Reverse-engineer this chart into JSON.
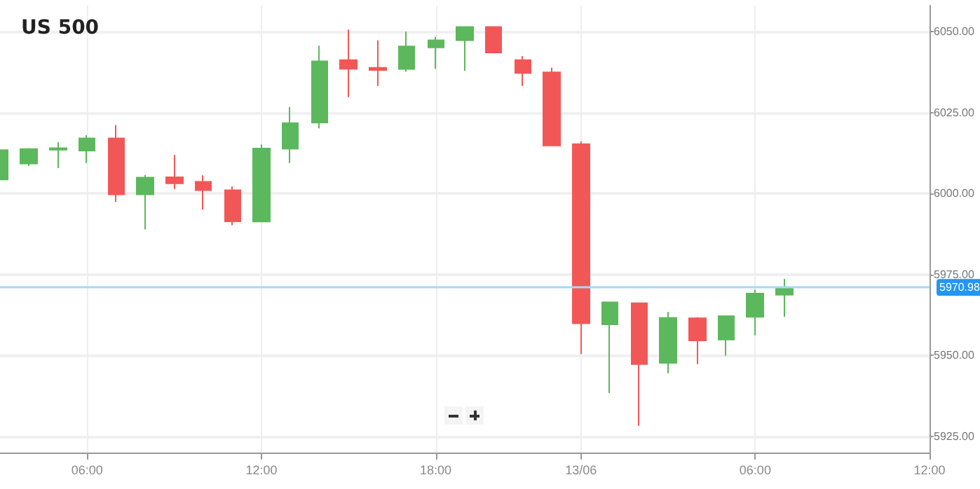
{
  "chart_data": {
    "type": "candlestick",
    "title": "US 500",
    "categories": [
      null,
      null,
      null,
      "06:00",
      null,
      null,
      null,
      null,
      null,
      "12:00",
      null,
      null,
      null,
      null,
      null,
      "18:00",
      null,
      null,
      null,
      null,
      "13/06",
      null,
      null,
      null,
      null,
      null,
      "06:00",
      null,
      null,
      null,
      null,
      null,
      "12:00"
    ],
    "ohlc": [
      [
        6004.3,
        6014,
        6004,
        6013.4
      ],
      [
        6009.2,
        6014,
        6008.5,
        6013.7
      ],
      [
        6013.5,
        6015.8,
        6007.8,
        6014
      ],
      [
        6013.2,
        6018,
        6009.4,
        6017
      ],
      [
        6017,
        6021.1,
        5997.4,
        5999.7
      ],
      [
        5999.7,
        6005.7,
        5988.9,
        6004.9
      ],
      [
        6005,
        6011.9,
        6001.4,
        6003.1
      ],
      [
        6003.6,
        6005.6,
        5995,
        6001
      ],
      [
        6001,
        6002.2,
        5990.2,
        5991.4
      ],
      [
        5991.3,
        6015.1,
        5991.3,
        6013.9
      ],
      [
        6013.8,
        6026.7,
        6009.4,
        6021.7
      ],
      [
        6021.9,
        6045.6,
        6020.1,
        6040.8
      ],
      [
        6041.2,
        6050.6,
        6029.7,
        6038.5
      ],
      [
        6038.8,
        6047.3,
        6033.2,
        6038.1
      ],
      [
        6038.4,
        6050,
        6037.6,
        6045.4
      ],
      [
        6045.1,
        6048.4,
        6038.5,
        6047.3
      ],
      [
        6047.3,
        6051.4,
        6037.9,
        6051.4
      ],
      [
        6051.4,
        6051.4,
        6043.5,
        6043.5
      ],
      [
        6041.2,
        6042.4,
        6033.2,
        6037.2
      ],
      [
        6037.4,
        6038.8,
        6014.8,
        6014.8
      ],
      [
        6015.2,
        6016.1,
        5950.4,
        5959.9
      ],
      [
        5959.6,
        5966.4,
        5938.4,
        5966.4
      ],
      [
        5966.1,
        5966.1,
        5928.3,
        5947.3
      ],
      [
        5947.7,
        5963.4,
        5944.5,
        5961.6
      ],
      [
        5961.5,
        5961.8,
        5947.3,
        5954.6
      ],
      [
        5954.9,
        5962.1,
        5949.9,
        5962.1
      ],
      [
        5961.9,
        5970.3,
        5956.2,
        5969.1
      ],
      [
        5968.7,
        5973.6,
        5961.9,
        5970.98
      ],
      null,
      null,
      null,
      null,
      null
    ],
    "colors": [
      "#5cb85c",
      "#5cb85c",
      "#5cb85c",
      "#5cb85c",
      "#f25757",
      "#5cb85c",
      "#f25757",
      "#f25757",
      "#f25757",
      "#5cb85c",
      "#5cb85c",
      "#5cb85c",
      "#f25757",
      "#f25757",
      "#5cb85c",
      "#5cb85c",
      "#5cb85c",
      "#f25757",
      "#f25757",
      "#f25757",
      "#f25757",
      "#5cb85c",
      "#f25757",
      "#5cb85c",
      "#f25757",
      "#5cb85c",
      "#5cb85c",
      "#5cb85c",
      null,
      null,
      null,
      null,
      null
    ],
    "ylim": [
      5920,
      6058
    ],
    "yticks": [
      {
        "value": 5925,
        "label": "5925.00"
      },
      {
        "value": 5950,
        "label": "5950.00"
      },
      {
        "value": 5975,
        "label": "5975.00"
      },
      {
        "value": 6000,
        "label": "6000.00"
      },
      {
        "value": 6025,
        "label": "6025.00"
      },
      {
        "value": 6050,
        "label": "6050.00"
      }
    ],
    "ref_lines": [
      {
        "axis": "y",
        "value": 5970.98,
        "label": "5970.98",
        "color": "#a8d8f8"
      }
    ],
    "grid": true
  }
}
